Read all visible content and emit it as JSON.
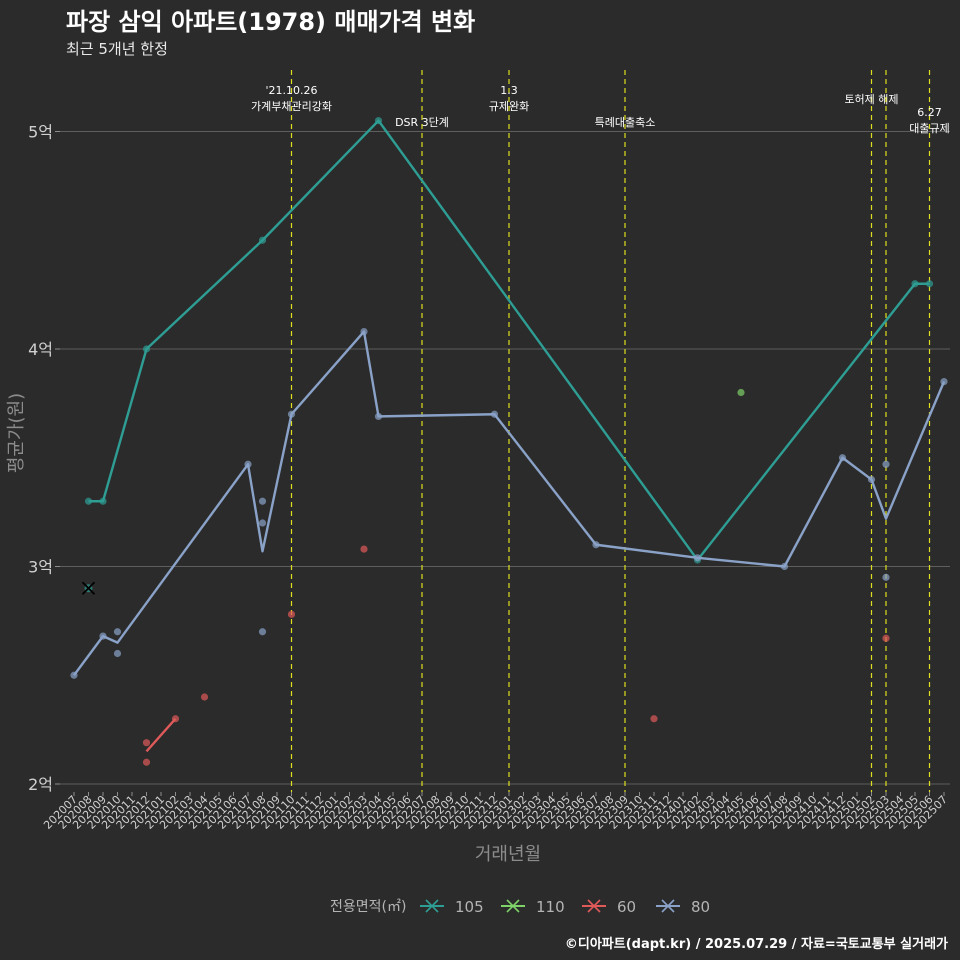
{
  "chart_data": {
    "type": "line",
    "title": "파장 삼익 아파트(1978) 매매가격 변화",
    "subtitle": "최근 5개년 한정",
    "xlabel": "거래년월",
    "ylabel": "평균가(원)",
    "caption": "©디아파트(dapt.kr) / 2025.07.29 / 자료=국토교통부 실거래가",
    "legend_title": "전용면적(㎡)",
    "legend_position": "bottom",
    "y_ticks": [
      {
        "value": 2.0,
        "label": "2억"
      },
      {
        "value": 3.0,
        "label": "3억"
      },
      {
        "value": 4.0,
        "label": "4억"
      },
      {
        "value": 5.0,
        "label": "5억"
      }
    ],
    "ylim": [
      1.93,
      5.3
    ],
    "grid": true,
    "x": [
      "202007",
      "202008",
      "202009",
      "202010",
      "202011",
      "202012",
      "202101",
      "202102",
      "202103",
      "202104",
      "202105",
      "202106",
      "202107",
      "202108",
      "202109",
      "202110",
      "202111",
      "202112",
      "202201",
      "202202",
      "202203",
      "202204",
      "202205",
      "202206",
      "202207",
      "202208",
      "202209",
      "202210",
      "202211",
      "202212",
      "202301",
      "202302",
      "202303",
      "202304",
      "202305",
      "202306",
      "202307",
      "202308",
      "202309",
      "202310",
      "202311",
      "202312",
      "202401",
      "202402",
      "202403",
      "202404",
      "202405",
      "202406",
      "202407",
      "202408",
      "202409",
      "202410",
      "202411",
      "202412",
      "202501",
      "202502",
      "202503",
      "202504",
      "202505",
      "202506",
      "202507"
    ],
    "series": [
      {
        "name": "105",
        "color": "#2e9e94",
        "line": [
          [
            "202008",
            3.3
          ],
          [
            "202009",
            3.3
          ],
          [
            "202012",
            4.0
          ],
          [
            "202108",
            4.5
          ],
          [
            "202204",
            5.05
          ],
          [
            "202402",
            3.03
          ],
          [
            "202505",
            4.3
          ],
          [
            "202506",
            4.3
          ]
        ],
        "points": [
          [
            "202008",
            3.3
          ],
          [
            "202009",
            3.3
          ],
          [
            "202012",
            4.0
          ],
          [
            "202108",
            4.5
          ],
          [
            "202204",
            5.05
          ],
          [
            "202402",
            3.03
          ],
          [
            "202505",
            4.3
          ],
          [
            "202506",
            4.3
          ]
        ],
        "cross_points": [
          [
            "202008",
            2.9
          ]
        ]
      },
      {
        "name": "110",
        "color": "#7fd16a",
        "line": [],
        "points": [
          [
            "202405",
            3.8
          ]
        ],
        "cross_points": []
      },
      {
        "name": "60",
        "color": "#e05a5a",
        "line": [
          [
            "202012",
            2.15
          ],
          [
            "202102",
            2.3
          ]
        ],
        "points": [
          [
            "202012",
            2.19
          ],
          [
            "202012",
            2.1
          ],
          [
            "202102",
            2.3
          ],
          [
            "202104",
            2.4
          ],
          [
            "202110",
            2.78
          ],
          [
            "202203",
            3.08
          ],
          [
            "202311",
            2.3
          ],
          [
            "202503",
            2.67
          ]
        ],
        "cross_points": []
      },
      {
        "name": "80",
        "color": "#8aa2c8",
        "line": [
          [
            "202007",
            2.5
          ],
          [
            "202009",
            2.68
          ],
          [
            "202010",
            2.65
          ],
          [
            "202107",
            3.47
          ],
          [
            "202108",
            3.07
          ],
          [
            "202110",
            3.7
          ],
          [
            "202203",
            4.08
          ],
          [
            "202204",
            3.69
          ],
          [
            "202212",
            3.7
          ],
          [
            "202307",
            3.1
          ],
          [
            "202402",
            3.04
          ],
          [
            "202408",
            3.0
          ],
          [
            "202412",
            3.5
          ],
          [
            "202502",
            3.4
          ],
          [
            "202503",
            3.22
          ],
          [
            "202507",
            3.85
          ]
        ],
        "points": [
          [
            "202007",
            2.5
          ],
          [
            "202009",
            2.68
          ],
          [
            "202010",
            2.7
          ],
          [
            "202010",
            2.6
          ],
          [
            "202107",
            3.47
          ],
          [
            "202108",
            3.3
          ],
          [
            "202108",
            3.2
          ],
          [
            "202108",
            2.7
          ],
          [
            "202110",
            3.7
          ],
          [
            "202203",
            4.08
          ],
          [
            "202204",
            3.69
          ],
          [
            "202212",
            3.7
          ],
          [
            "202307",
            3.1
          ],
          [
            "202402",
            3.04
          ],
          [
            "202408",
            3.0
          ],
          [
            "202412",
            3.5
          ],
          [
            "202502",
            3.4
          ],
          [
            "202503",
            3.47
          ],
          [
            "202503",
            2.95
          ],
          [
            "202507",
            3.85
          ]
        ],
        "cross_points": []
      }
    ],
    "events": [
      {
        "x": "202110",
        "lines": [
          "'21.10.26",
          "가계부채관리강화"
        ],
        "row": 1
      },
      {
        "x": "202207",
        "lines": [
          "DSR 3단계"
        ],
        "row": 3
      },
      {
        "x": "202301",
        "lines": [
          "1.3",
          "규제완화"
        ],
        "row": 1
      },
      {
        "x": "202309",
        "lines": [
          "특례대출축소"
        ],
        "row": 3
      },
      {
        "x": "202502",
        "lines": [
          "토허제 해제"
        ],
        "row": 2
      },
      {
        "x": "202503",
        "lines": [],
        "row": 0
      },
      {
        "x": "202506",
        "lines": [
          "6.27",
          "대출규제"
        ],
        "row": 2.5
      }
    ]
  }
}
